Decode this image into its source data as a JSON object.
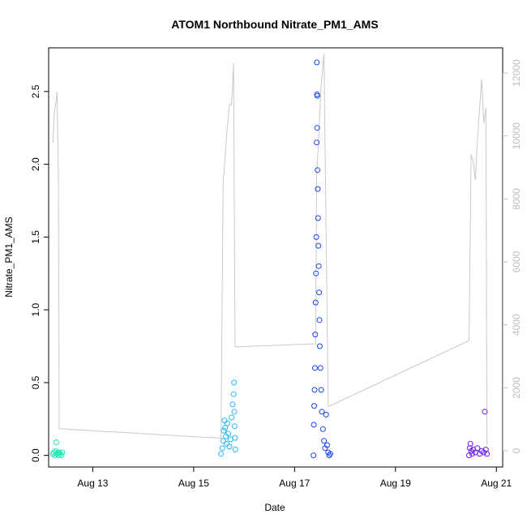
{
  "chart_data": {
    "type": "scatter",
    "title": "ATOM1 Northbound Nitrate_PM1_AMS",
    "xlabel": "Date",
    "ylabel": "Nitrate_PM1_AMS",
    "x_ticks": [
      "Aug 13",
      "Aug 15",
      "Aug 17",
      "Aug 19",
      "Aug 21"
    ],
    "y_ticks": [
      "0.0",
      "0.5",
      "1.0",
      "1.5",
      "2.0",
      "2.5"
    ],
    "y2_ticks": [
      "0",
      "2000",
      "4000",
      "6000",
      "8000",
      "10000",
      "12000"
    ],
    "xlim": [
      "2016-08-12 03:00",
      "2016-08-21 03:00"
    ],
    "ylim": [
      -0.08,
      2.8
    ],
    "y2lim": [
      -0.0,
      12800
    ],
    "grid": false,
    "colors": {
      "line": "#c8c8c8",
      "cluster1": "#1de9b6",
      "cluster2": "#29b6f6",
      "cluster3": "#1a44f0",
      "cluster4": "#6a1bf2"
    },
    "series": [
      {
        "color": "#1de9b6",
        "points": [
          [
            "2016-08-12 05:00",
            0.01
          ],
          [
            "2016-08-12 05:30",
            0.02
          ],
          [
            "2016-08-12 06:00",
            0.0
          ],
          [
            "2016-08-12 06:20",
            0.03
          ],
          [
            "2016-08-12 06:40",
            0.09
          ],
          [
            "2016-08-12 07:00",
            0.01
          ],
          [
            "2016-08-12 07:20",
            0.02
          ],
          [
            "2016-08-12 07:40",
            0.0
          ],
          [
            "2016-08-12 08:00",
            0.02
          ],
          [
            "2016-08-12 08:30",
            0.01
          ],
          [
            "2016-08-12 09:00",
            0.0
          ],
          [
            "2016-08-12 09:30",
            0.02
          ]
        ]
      },
      {
        "color": "#29b6f6",
        "points": [
          [
            "2016-08-15 13:00",
            0.01
          ],
          [
            "2016-08-15 13:40",
            0.05
          ],
          [
            "2016-08-15 14:00",
            0.1
          ],
          [
            "2016-08-15 14:20",
            0.17
          ],
          [
            "2016-08-15 14:40",
            0.24
          ],
          [
            "2016-08-15 15:00",
            0.19
          ],
          [
            "2016-08-15 15:20",
            0.13
          ],
          [
            "2016-08-15 15:40",
            0.08
          ],
          [
            "2016-08-15 16:00",
            0.22
          ],
          [
            "2016-08-15 16:30",
            0.15
          ],
          [
            "2016-08-15 17:00",
            0.06
          ],
          [
            "2016-08-15 17:30",
            0.11
          ],
          [
            "2016-08-15 18:00",
            0.26
          ],
          [
            "2016-08-15 18:30",
            0.35
          ],
          [
            "2016-08-15 19:00",
            0.42
          ],
          [
            "2016-08-15 19:10",
            0.5
          ],
          [
            "2016-08-15 19:20",
            0.3
          ],
          [
            "2016-08-15 19:30",
            0.2
          ],
          [
            "2016-08-15 19:40",
            0.12
          ],
          [
            "2016-08-15 19:50",
            0.04
          ]
        ]
      },
      {
        "color": "#1a44f0",
        "points": [
          [
            "2016-08-17 09:00",
            0.0
          ],
          [
            "2016-08-17 09:10",
            0.21
          ],
          [
            "2016-08-17 09:20",
            0.34
          ],
          [
            "2016-08-17 09:30",
            0.45
          ],
          [
            "2016-08-17 09:40",
            0.6
          ],
          [
            "2016-08-17 09:50",
            0.83
          ],
          [
            "2016-08-17 10:00",
            1.05
          ],
          [
            "2016-08-17 10:10",
            1.25
          ],
          [
            "2016-08-17 10:20",
            1.5
          ],
          [
            "2016-08-17 10:30",
            2.15
          ],
          [
            "2016-08-17 10:35",
            2.7
          ],
          [
            "2016-08-17 10:40",
            2.48
          ],
          [
            "2016-08-17 10:45",
            2.25
          ],
          [
            "2016-08-17 10:50",
            2.47
          ],
          [
            "2016-08-17 10:55",
            1.96
          ],
          [
            "2016-08-17 11:00",
            1.83
          ],
          [
            "2016-08-17 11:10",
            1.63
          ],
          [
            "2016-08-17 11:20",
            1.44
          ],
          [
            "2016-08-17 11:30",
            1.3
          ],
          [
            "2016-08-17 11:40",
            1.12
          ],
          [
            "2016-08-17 11:50",
            0.93
          ],
          [
            "2016-08-17 12:00",
            0.75
          ],
          [
            "2016-08-17 12:20",
            0.6
          ],
          [
            "2016-08-17 12:40",
            0.45
          ],
          [
            "2016-08-17 13:00",
            0.3
          ],
          [
            "2016-08-17 13:30",
            0.18
          ],
          [
            "2016-08-17 14:00",
            0.1
          ],
          [
            "2016-08-17 14:30",
            0.05
          ],
          [
            "2016-08-17 15:00",
            0.28
          ],
          [
            "2016-08-17 15:30",
            0.07
          ],
          [
            "2016-08-17 16:00",
            0.02
          ],
          [
            "2016-08-17 16:30",
            0.0
          ],
          [
            "2016-08-17 17:00",
            0.01
          ]
        ]
      },
      {
        "color": "#6a1bf2",
        "points": [
          [
            "2016-08-20 11:00",
            0.0
          ],
          [
            "2016-08-20 11:20",
            0.05
          ],
          [
            "2016-08-20 11:40",
            0.08
          ],
          [
            "2016-08-20 12:00",
            0.03
          ],
          [
            "2016-08-20 12:30",
            0.01
          ],
          [
            "2016-08-20 13:00",
            0.04
          ],
          [
            "2016-08-20 14:00",
            0.02
          ],
          [
            "2016-08-20 15:00",
            0.05
          ],
          [
            "2016-08-20 16:00",
            0.01
          ],
          [
            "2016-08-20 17:00",
            0.03
          ],
          [
            "2016-08-20 18:00",
            0.02
          ],
          [
            "2016-08-20 18:30",
            0.3
          ],
          [
            "2016-08-20 19:00",
            0.04
          ],
          [
            "2016-08-20 19:30",
            0.01
          ]
        ]
      }
    ],
    "line_series": {
      "axis": "right",
      "color": "#c8c8c8",
      "points": [
        [
          "2016-08-12 05:00",
          9800
        ],
        [
          "2016-08-12 05:40",
          10700
        ],
        [
          "2016-08-12 06:20",
          11000
        ],
        [
          "2016-08-12 07:00",
          11400
        ],
        [
          "2016-08-12 07:40",
          8600
        ],
        [
          "2016-08-12 08:00",
          700
        ],
        [
          "2016-08-15 13:00",
          400
        ],
        [
          "2016-08-15 14:00",
          8500
        ],
        [
          "2016-08-15 15:00",
          9400
        ],
        [
          "2016-08-15 16:00",
          10300
        ],
        [
          "2016-08-15 17:00",
          11000
        ],
        [
          "2016-08-15 18:00",
          11000
        ],
        [
          "2016-08-15 19:00",
          12300
        ],
        [
          "2016-08-15 19:40",
          3300
        ],
        [
          "2016-08-17 10:00",
          3400
        ],
        [
          "2016-08-17 10:30",
          8800
        ],
        [
          "2016-08-17 11:30",
          9900
        ],
        [
          "2016-08-17 12:30",
          11500
        ],
        [
          "2016-08-17 14:00",
          12600
        ],
        [
          "2016-08-17 16:00",
          1400
        ],
        [
          "2016-08-20 11:00",
          3500
        ],
        [
          "2016-08-20 12:00",
          9400
        ],
        [
          "2016-08-20 13:00",
          9200
        ],
        [
          "2016-08-20 14:00",
          8600
        ],
        [
          "2016-08-20 15:00",
          9900
        ],
        [
          "2016-08-20 17:00",
          11800
        ],
        [
          "2016-08-20 18:00",
          10400
        ],
        [
          "2016-08-20 19:00",
          10900
        ],
        [
          "2016-08-20 19:30",
          200
        ]
      ]
    }
  }
}
